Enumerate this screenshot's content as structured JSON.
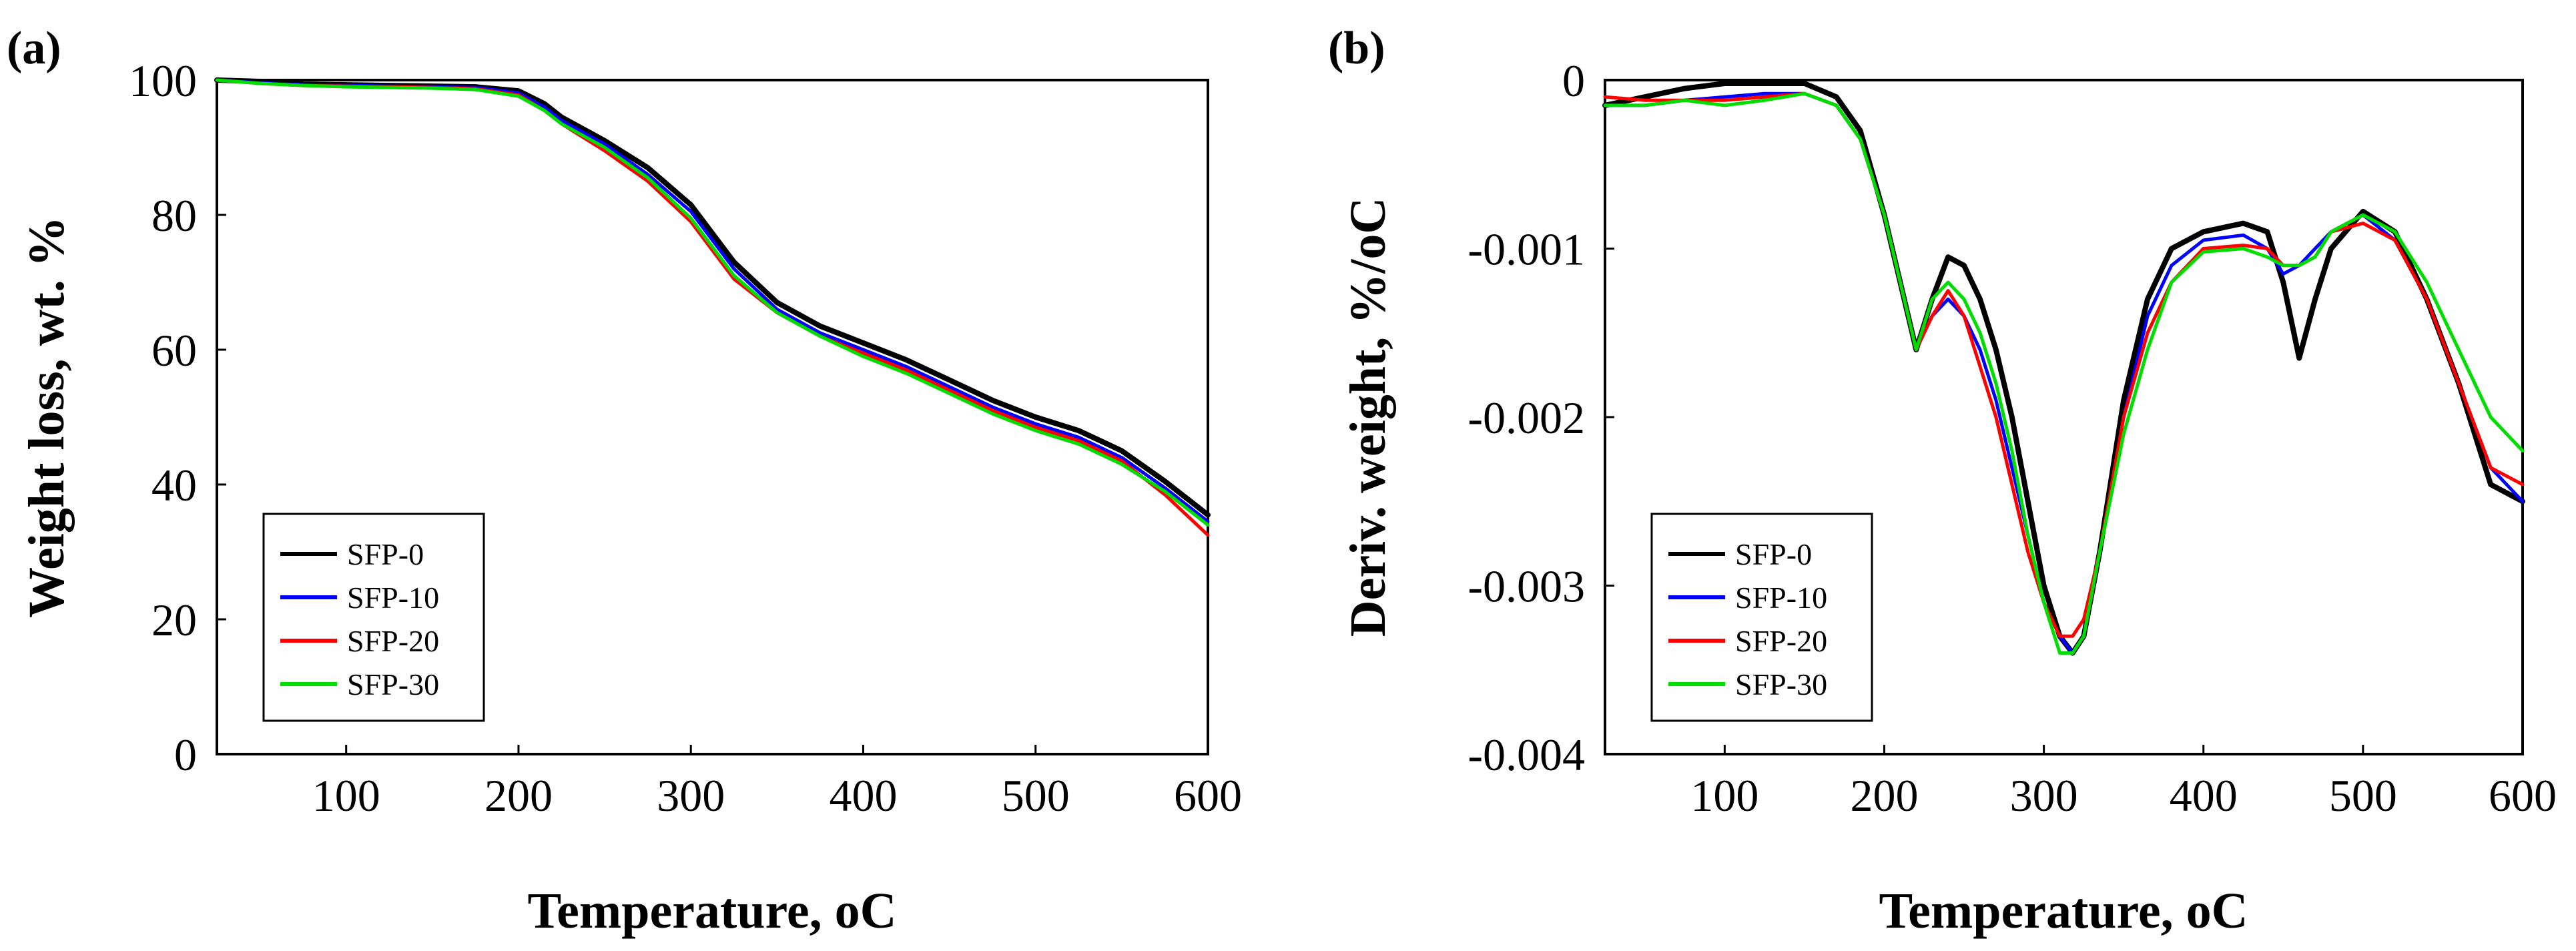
{
  "chart_data": [
    {
      "panel_label": "(a)",
      "type": "line",
      "xlabel": "Temperature, ",
      "xlabel_unit": "oC",
      "ylabel": "Weight loss, wt. %",
      "xlim": [
        25,
        600
      ],
      "ylim": [
        0,
        100
      ],
      "xticks": [
        100,
        200,
        300,
        400,
        500,
        600
      ],
      "yticks": [
        0,
        20,
        40,
        60,
        80,
        100
      ],
      "x": [
        25,
        50,
        75,
        100,
        125,
        150,
        175,
        200,
        215,
        225,
        250,
        275,
        300,
        325,
        350,
        375,
        400,
        425,
        450,
        475,
        500,
        525,
        550,
        575,
        600
      ],
      "legend_position": "bottom-left",
      "series": [
        {
          "name": "SFP-0",
          "color": "#000000",
          "values": [
            100,
            99.8,
            99.4,
            99.3,
            99.2,
            99.1,
            99.0,
            98.4,
            96.5,
            94.5,
            91.0,
            87.0,
            81.5,
            73.0,
            67.0,
            63.5,
            61.0,
            58.5,
            55.5,
            52.5,
            50.0,
            48.0,
            45.0,
            40.5,
            35.5
          ]
        },
        {
          "name": "SFP-10",
          "color": "#0000ff",
          "values": [
            100,
            99.6,
            99.3,
            99.2,
            99.1,
            99.0,
            98.9,
            98.1,
            96.0,
            94.0,
            90.5,
            86.0,
            80.5,
            72.0,
            66.0,
            62.5,
            60.0,
            57.5,
            54.5,
            51.5,
            49.0,
            47.0,
            44.0,
            39.5,
            34.5
          ]
        },
        {
          "name": "SFP-20",
          "color": "#ff0000",
          "values": [
            100,
            99.5,
            99.2,
            99.1,
            99.0,
            98.9,
            98.7,
            97.8,
            95.5,
            93.5,
            89.5,
            85.0,
            79.0,
            70.5,
            65.5,
            62.0,
            59.5,
            57.0,
            54.0,
            51.0,
            48.5,
            46.5,
            43.5,
            38.5,
            32.5
          ]
        },
        {
          "name": "SFP-30",
          "color": "#00dd00",
          "values": [
            100,
            99.5,
            99.2,
            99.0,
            98.9,
            98.8,
            98.6,
            97.6,
            95.5,
            93.5,
            90.0,
            85.5,
            79.5,
            71.0,
            65.5,
            62.0,
            59.0,
            56.5,
            53.5,
            50.5,
            48.0,
            46.0,
            43.0,
            39.0,
            34.0
          ]
        }
      ]
    },
    {
      "panel_label": "(b)",
      "type": "line",
      "xlabel": "Temperature, ",
      "xlabel_unit": "oC",
      "ylabel": "Deriv. weight, %/oC",
      "xlim": [
        25,
        600
      ],
      "ylim": [
        -0.004,
        0
      ],
      "xticks": [
        100,
        200,
        300,
        400,
        500,
        600
      ],
      "yticks": [
        0,
        -0.001,
        -0.002,
        -0.003,
        -0.004
      ],
      "ytick_labels": [
        "0",
        "-0.001",
        "-0.002",
        "-0.003",
        "-0.004"
      ],
      "x": [
        25,
        50,
        75,
        100,
        125,
        150,
        170,
        185,
        200,
        210,
        220,
        230,
        240,
        250,
        260,
        270,
        280,
        290,
        300,
        310,
        318,
        325,
        335,
        350,
        365,
        380,
        400,
        425,
        440,
        450,
        460,
        470,
        480,
        500,
        520,
        540,
        560,
        580,
        600
      ],
      "legend_position": "bottom-left",
      "series": [
        {
          "name": "SFP-0",
          "color": "#000000",
          "values": [
            -0.00015,
            -0.0001,
            -5e-05,
            -2e-05,
            -2e-05,
            -2e-05,
            -0.0001,
            -0.0003,
            -0.0008,
            -0.0012,
            -0.0016,
            -0.0013,
            -0.00105,
            -0.0011,
            -0.0013,
            -0.0016,
            -0.002,
            -0.0025,
            -0.003,
            -0.0033,
            -0.0034,
            -0.0033,
            -0.0028,
            -0.0019,
            -0.0013,
            -0.001,
            -0.0009,
            -0.00085,
            -0.0009,
            -0.0012,
            -0.00165,
            -0.0013,
            -0.001,
            -0.00078,
            -0.0009,
            -0.0013,
            -0.0018,
            -0.0024,
            -0.0025
          ]
        },
        {
          "name": "SFP-10",
          "color": "#0000ff",
          "values": [
            -0.00015,
            -0.00015,
            -0.00012,
            -0.0001,
            -8e-05,
            -8e-05,
            -0.00015,
            -0.00035,
            -0.0008,
            -0.0012,
            -0.0016,
            -0.0014,
            -0.0013,
            -0.0014,
            -0.0016,
            -0.0019,
            -0.0023,
            -0.0027,
            -0.0031,
            -0.0033,
            -0.0034,
            -0.0033,
            -0.0028,
            -0.002,
            -0.0014,
            -0.0011,
            -0.00095,
            -0.00092,
            -0.001,
            -0.00115,
            -0.0011,
            -0.001,
            -0.0009,
            -0.0008,
            -0.00095,
            -0.0013,
            -0.0018,
            -0.0023,
            -0.0025
          ]
        },
        {
          "name": "SFP-20",
          "color": "#ff0000",
          "values": [
            -0.0001,
            -0.00012,
            -0.00012,
            -0.00012,
            -0.0001,
            -8e-05,
            -0.00015,
            -0.00035,
            -0.0008,
            -0.0012,
            -0.0016,
            -0.0014,
            -0.00125,
            -0.0014,
            -0.0017,
            -0.002,
            -0.0024,
            -0.0028,
            -0.0031,
            -0.0033,
            -0.0033,
            -0.0032,
            -0.0028,
            -0.002,
            -0.0015,
            -0.0012,
            -0.001,
            -0.00098,
            -0.001,
            -0.0011,
            -0.0011,
            -0.00105,
            -0.0009,
            -0.00085,
            -0.00095,
            -0.0013,
            -0.0018,
            -0.0023,
            -0.0024
          ]
        },
        {
          "name": "SFP-30",
          "color": "#00dd00",
          "values": [
            -0.00015,
            -0.00015,
            -0.00012,
            -0.00015,
            -0.00012,
            -8e-05,
            -0.00015,
            -0.00035,
            -0.0008,
            -0.0012,
            -0.0016,
            -0.0013,
            -0.0012,
            -0.0013,
            -0.0015,
            -0.0018,
            -0.0022,
            -0.0027,
            -0.0031,
            -0.0034,
            -0.0034,
            -0.0033,
            -0.0028,
            -0.0021,
            -0.0016,
            -0.0012,
            -0.00102,
            -0.001,
            -0.00105,
            -0.0011,
            -0.0011,
            -0.00105,
            -0.0009,
            -0.0008,
            -0.0009,
            -0.0012,
            -0.0016,
            -0.002,
            -0.0022
          ]
        }
      ]
    }
  ]
}
